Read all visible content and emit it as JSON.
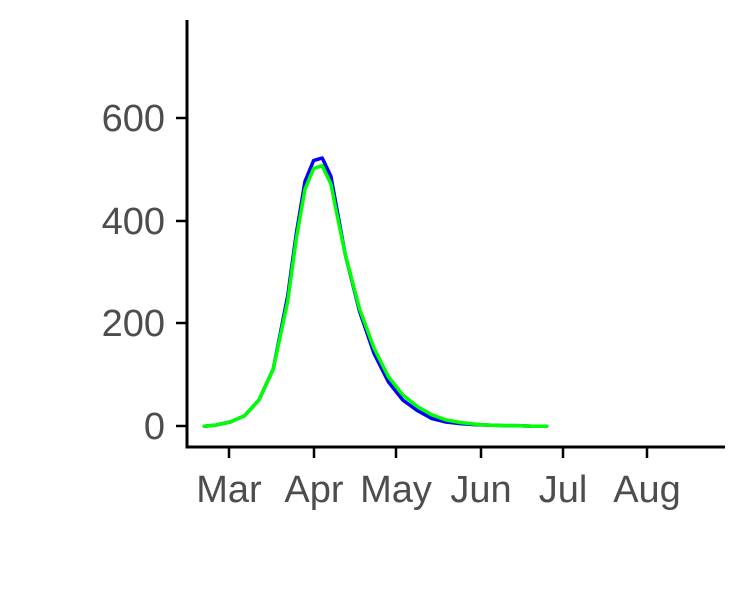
{
  "chart_data": {
    "type": "line",
    "title": "",
    "xlabel": "",
    "ylabel": "",
    "x_ticks": [
      "Mar",
      "Apr",
      "May",
      "Jun",
      "Jul",
      "Aug"
    ],
    "y_ticks": [
      "0",
      "200",
      "400",
      "600"
    ],
    "ylim": [
      -40,
      780
    ],
    "grid": false,
    "legend": "none",
    "x_unit": "days since Mar 1",
    "xlim": [
      -10,
      177
    ],
    "series": [
      {
        "color": "#0000ff",
        "x": [
          -4,
          0,
          5,
          10,
          15,
          20,
          25,
          28,
          31,
          34,
          37,
          40,
          42,
          45,
          50,
          55,
          60,
          65,
          70,
          75,
          80,
          85,
          90,
          95,
          100,
          105,
          110,
          115
        ],
        "y": [
          0,
          2,
          8,
          20,
          50,
          110,
          250,
          370,
          470,
          510,
          515,
          480,
          420,
          330,
          220,
          140,
          85,
          50,
          30,
          15,
          8,
          5,
          3,
          2,
          1,
          1,
          0,
          0
        ]
      },
      {
        "color": "#00ff00",
        "x": [
          -4,
          0,
          5,
          10,
          15,
          20,
          25,
          28,
          31,
          34,
          37,
          40,
          42,
          45,
          50,
          55,
          60,
          65,
          70,
          75,
          80,
          85,
          90,
          95,
          100,
          105,
          110,
          115
        ],
        "y": [
          0,
          2,
          8,
          20,
          50,
          110,
          240,
          360,
          455,
          495,
          500,
          465,
          410,
          330,
          225,
          150,
          95,
          60,
          38,
          22,
          12,
          7,
          4,
          2,
          1,
          1,
          0,
          0
        ]
      }
    ]
  }
}
